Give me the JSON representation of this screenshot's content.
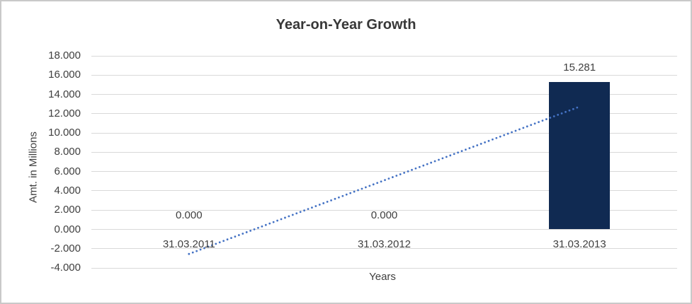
{
  "chart_data": {
    "type": "bar",
    "title": "Year-on-Year Growth",
    "xlabel": "Years",
    "ylabel": "Amt. in Millions",
    "categories": [
      "31.03.2011",
      "31.03.2012",
      "31.03.2013"
    ],
    "values": [
      0.0,
      0.0,
      15.281
    ],
    "data_labels": [
      "0.000",
      "0.000",
      "15.281"
    ],
    "ylim": [
      -4.0,
      18.0
    ],
    "ytick_step": 2.0,
    "ytick_labels": [
      "-4.000",
      "-2.000",
      "0.000",
      "2.000",
      "4.000",
      "6.000",
      "8.000",
      "10.000",
      "12.000",
      "14.000",
      "16.000",
      "18.000"
    ],
    "grid": true,
    "legend": "none",
    "trendline": {
      "style": "dotted",
      "start_category": "31.03.2011",
      "end_category": "31.03.2013",
      "start_value": -2.55,
      "end_value": 12.73
    },
    "colors": {
      "bar": "#102A52",
      "trendline": "#4472C4",
      "gridline": "#D9D9D9",
      "text": "#3F3F3F",
      "title_text": "#383838",
      "frame_border": "#C9C9C9",
      "background": "#FFFFFF"
    }
  }
}
